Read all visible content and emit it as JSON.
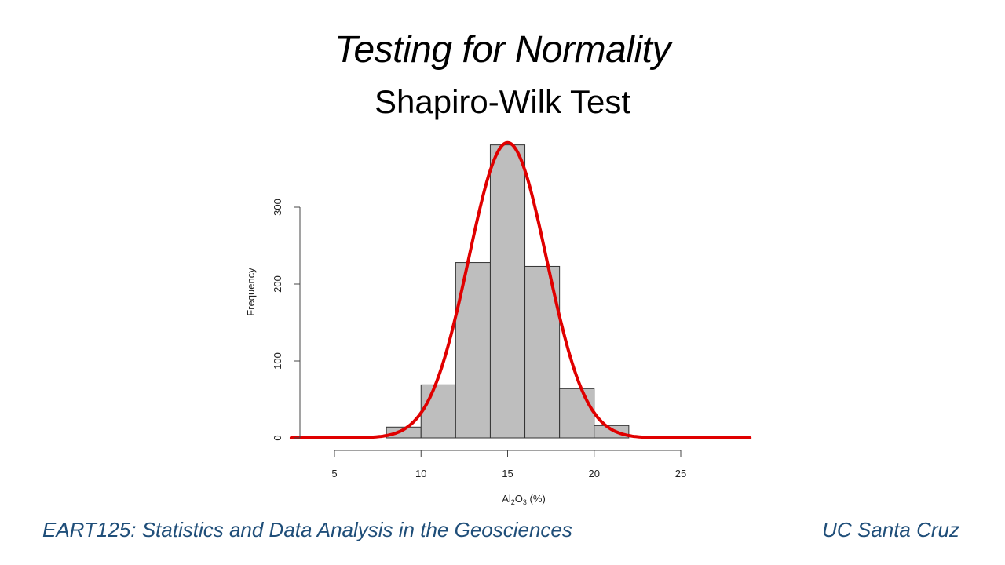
{
  "slide": {
    "title": "Testing for Normality",
    "subtitle": "Shapiro-Wilk Test",
    "footer_left": "EART125: Statistics and Data Analysis in the Geosciences",
    "footer_right": "UC Santa Cruz"
  },
  "colors": {
    "bar_fill": "#bebebe",
    "bar_stroke": "#333333",
    "curve": "#e00000",
    "footer_text": "#1f4e79"
  },
  "chart_data": {
    "type": "bar",
    "subtype": "histogram",
    "title": "",
    "xlabel": "Al2O3 (%)",
    "xlabel_main": "Al",
    "xlabel_sub1": "2",
    "xlabel_mid": "O",
    "xlabel_sub2": "3",
    "xlabel_tail": " (%)",
    "ylabel": "Frequency",
    "bin_edges": [
      8,
      10,
      12,
      14,
      16,
      18,
      20,
      22
    ],
    "categories": [
      "8-10",
      "10-12",
      "12-14",
      "14-16",
      "16-18",
      "18-20",
      "20-22"
    ],
    "values": [
      14,
      69,
      228,
      381,
      223,
      64,
      16
    ],
    "xlim": [
      3,
      29
    ],
    "ylim": [
      0,
      384
    ],
    "xticks": [
      5,
      10,
      15,
      20,
      25
    ],
    "yticks": [
      0,
      100,
      200,
      300
    ],
    "grid": false,
    "overlay": {
      "type": "line",
      "name": "fitted normal curve",
      "mean": 15,
      "sd": 2.25,
      "peak": 384,
      "x_range": [
        2.5,
        29
      ]
    }
  }
}
